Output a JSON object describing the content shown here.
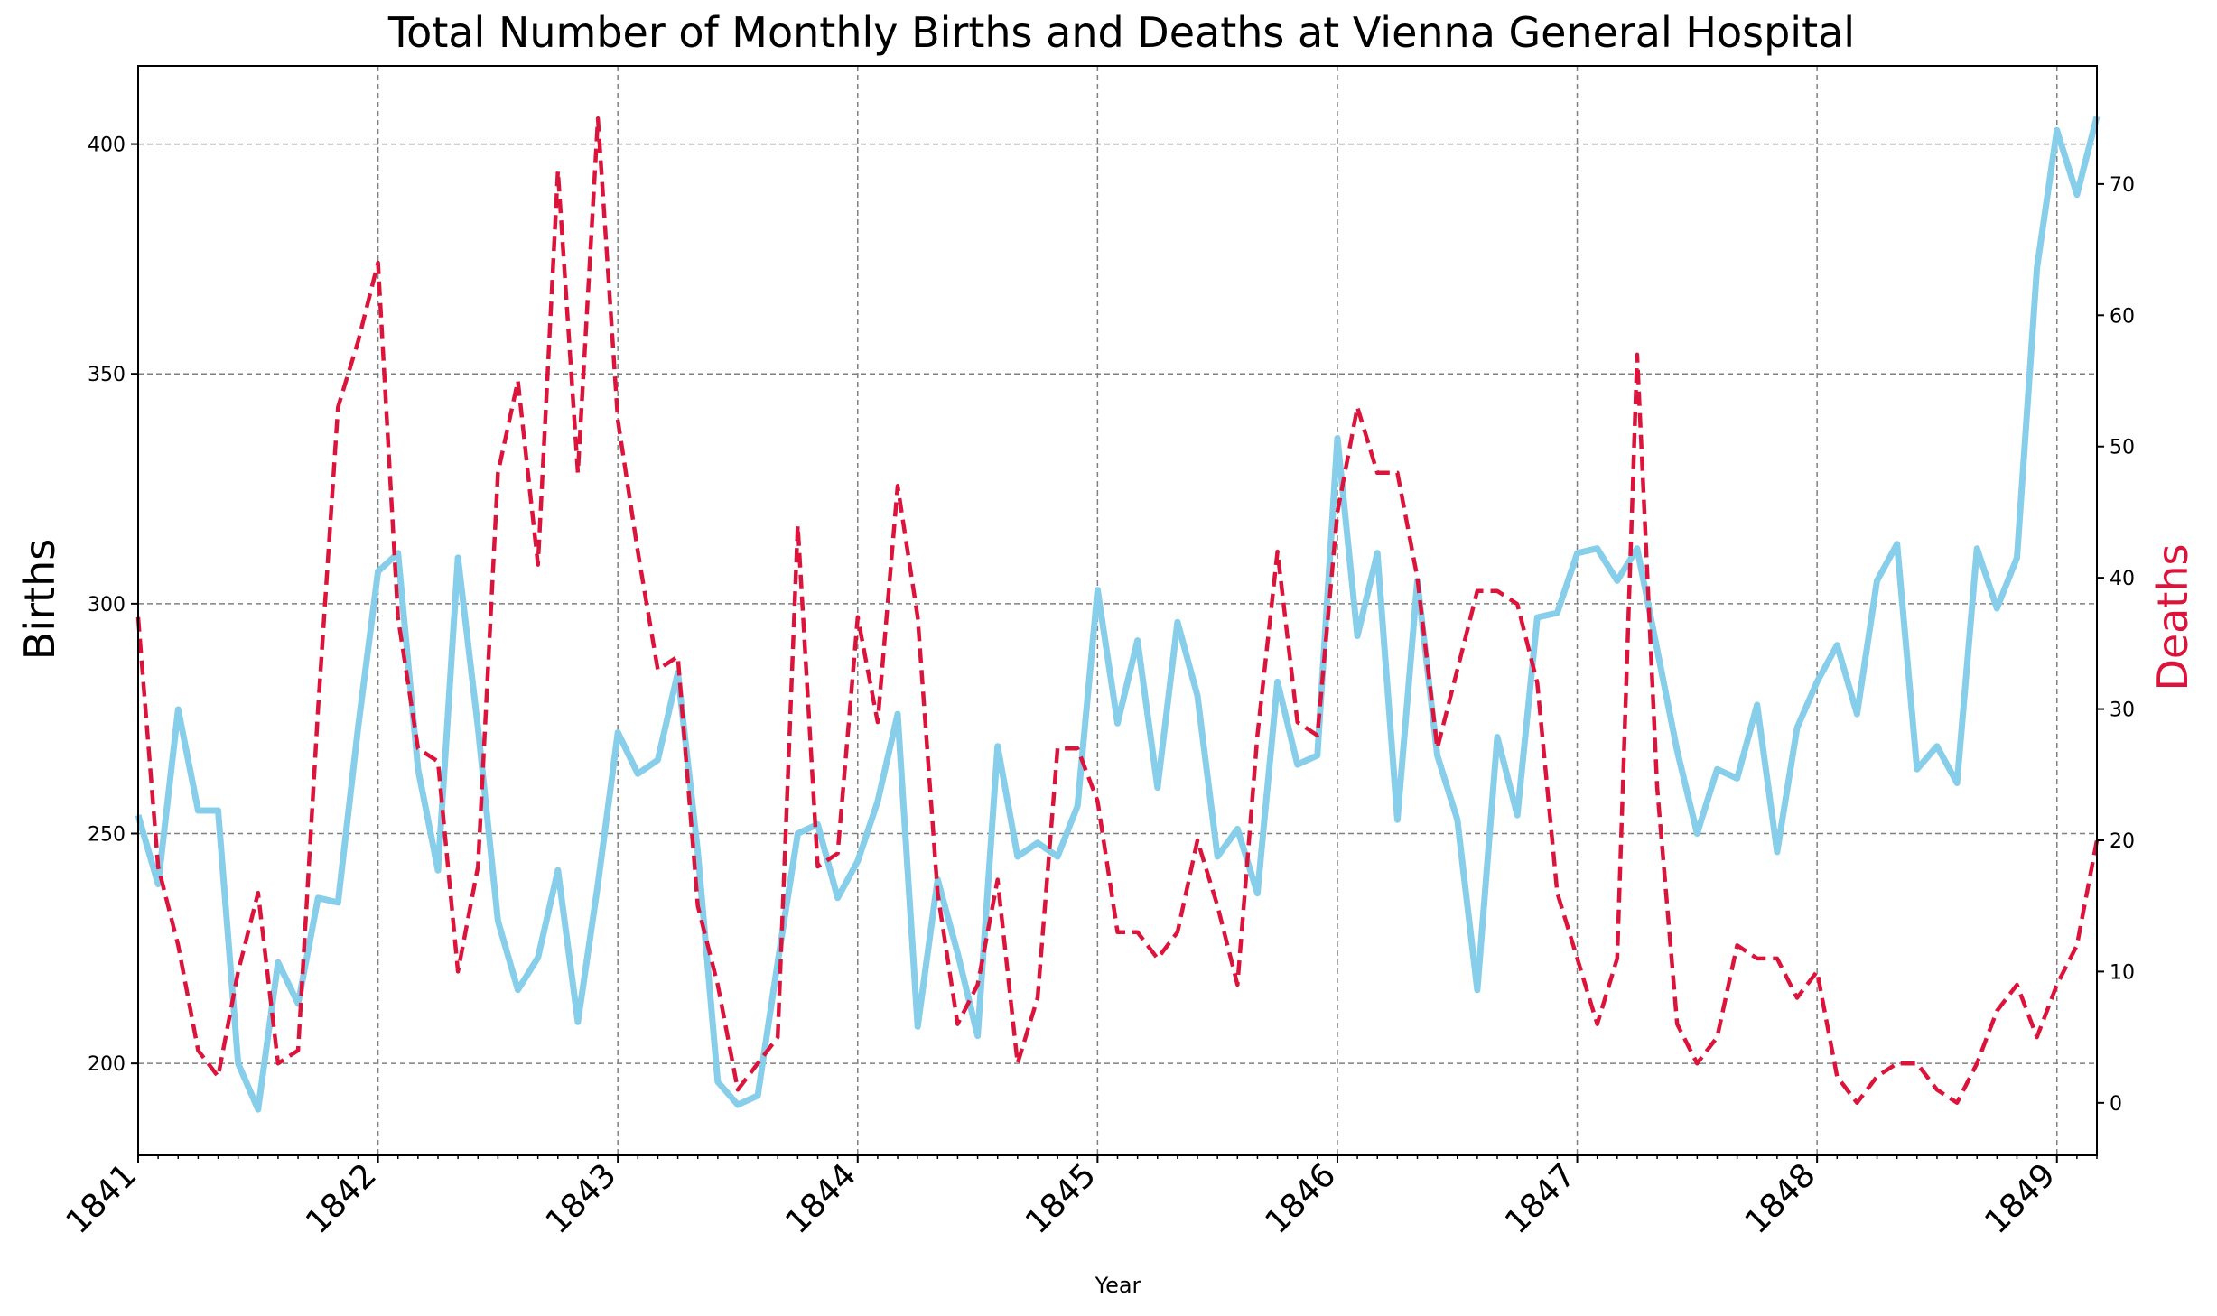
{
  "chart_data": {
    "type": "line",
    "title": "Total Number of Monthly Births and Deaths at Vienna General Hospital",
    "xlabel": "Year",
    "ylabel_left": "Births",
    "ylabel_right": "Deaths",
    "grid": true,
    "x_start": "1841-01",
    "x_end": "1849-03",
    "xlim": [
      "1841-01",
      "1849-03"
    ],
    "x_ticks": [
      "1841",
      "1842",
      "1843",
      "1844",
      "1845",
      "1846",
      "1847",
      "1848",
      "1849"
    ],
    "y_left_ticks": [
      200,
      250,
      300,
      350,
      400
    ],
    "y_left_lim": [
      180,
      417
    ],
    "y_right_ticks": [
      0,
      10,
      20,
      30,
      40,
      50,
      60,
      70
    ],
    "y_right_lim": [
      -4,
      79
    ],
    "colors": {
      "births": "#87ceeb",
      "deaths": "#dc143c",
      "grid": "#808080"
    },
    "series": [
      {
        "name": "Births",
        "axis": "left",
        "style": "solid",
        "values": [
          254,
          239,
          277,
          255,
          255,
          200,
          190,
          222,
          213,
          236,
          235,
          273,
          307,
          311,
          264,
          242,
          310,
          273,
          231,
          216,
          223,
          242,
          209,
          239,
          272,
          263,
          266,
          285,
          246,
          196,
          191,
          193,
          222,
          250,
          252,
          236,
          244,
          257,
          276,
          208,
          240,
          224,
          206,
          269,
          245,
          248,
          245,
          256,
          303,
          274,
          292,
          260,
          296,
          280,
          245,
          251,
          237,
          283,
          265,
          267,
          336,
          293,
          311,
          253,
          305,
          267,
          253,
          216,
          271,
          254,
          297,
          298,
          311,
          312,
          305,
          312,
          290,
          268,
          250,
          264,
          262,
          278,
          246,
          273,
          283,
          291,
          276,
          305,
          313,
          264,
          269,
          261,
          312,
          299,
          310,
          373,
          403,
          389,
          406
        ]
      },
      {
        "name": "Deaths",
        "axis": "right",
        "style": "dashed",
        "values": [
          37,
          18,
          12,
          4,
          2,
          10,
          16,
          3,
          4,
          30,
          53,
          58,
          64,
          37,
          27,
          26,
          10,
          18,
          48,
          55,
          41,
          71,
          48,
          75,
          52,
          42,
          33,
          34,
          15,
          9,
          1,
          3,
          5,
          44,
          18,
          19,
          37,
          29,
          47,
          37,
          16,
          6,
          9,
          17,
          3,
          8,
          27,
          27,
          23,
          13,
          13,
          11,
          13,
          20,
          15,
          9,
          28,
          42,
          29,
          28,
          45,
          53,
          48,
          48,
          40,
          27,
          33,
          39,
          39,
          38,
          32,
          16,
          11,
          6,
          11,
          57,
          24,
          6,
          3,
          5,
          12,
          11,
          11,
          8,
          10,
          2,
          0,
          2,
          3,
          3,
          1,
          0,
          3,
          7,
          9,
          5,
          9,
          12,
          20
        ]
      }
    ]
  }
}
